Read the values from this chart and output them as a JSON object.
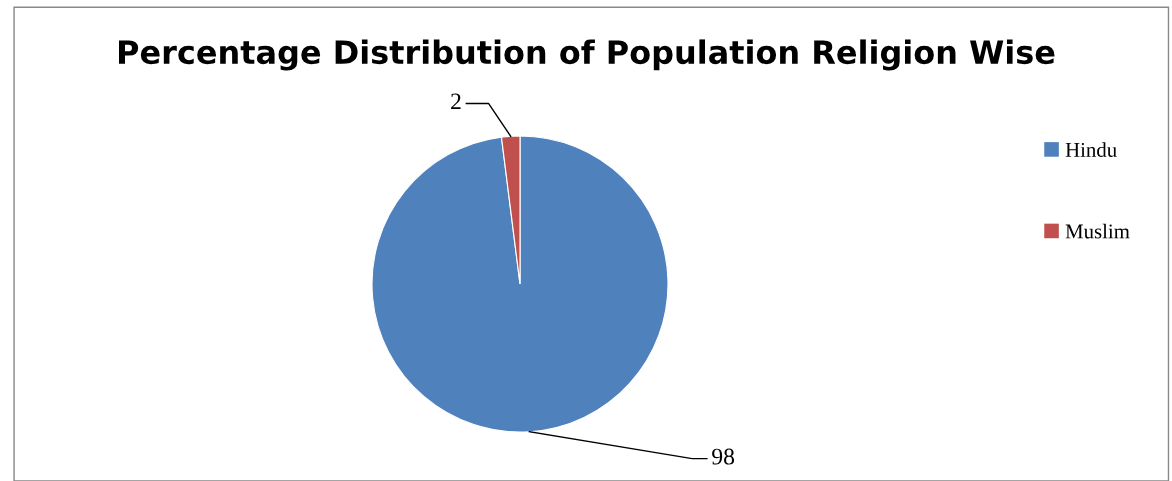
{
  "chart_data": {
    "type": "pie",
    "title": "Percentage Distribution of Population Religion Wise",
    "categories": [
      "Hindu",
      "Muslim"
    ],
    "values": [
      98,
      2
    ],
    "colors": [
      "#4f81bd",
      "#c0504d"
    ],
    "data_labels": true,
    "legend": "right"
  }
}
